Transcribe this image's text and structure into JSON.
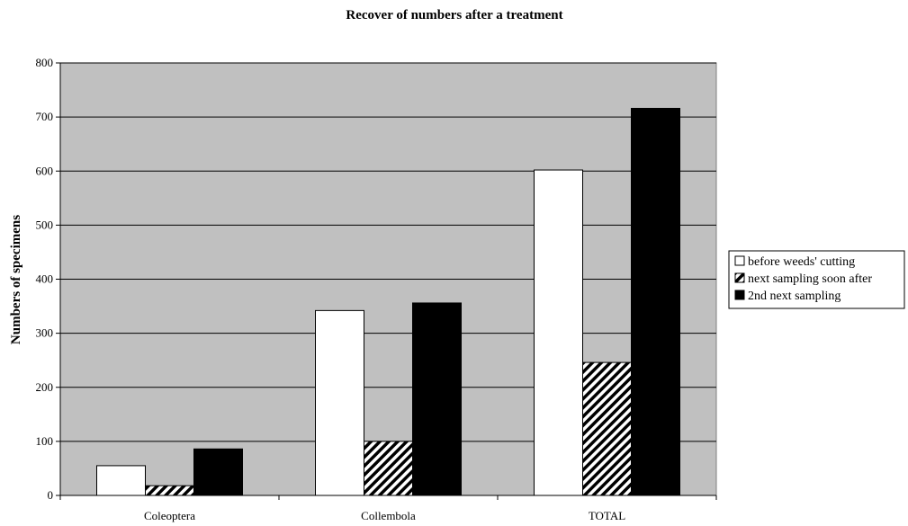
{
  "chart_data": {
    "type": "bar",
    "title": "Recover of numbers after a treatment",
    "xlabel": "",
    "ylabel": "Numbers of specimens",
    "ylim": [
      0,
      800
    ],
    "ytick_step": 100,
    "categories": [
      "Coleoptera",
      "Collembola",
      "TOTAL"
    ],
    "series": [
      {
        "name": "before weeds' cutting",
        "values": [
          55,
          342,
          602
        ],
        "fill": "white"
      },
      {
        "name": "next sampling soon after",
        "values": [
          18,
          100,
          246
        ],
        "fill": "hatch"
      },
      {
        "name": "2nd next sampling",
        "values": [
          86,
          356,
          716
        ],
        "fill": "black"
      }
    ],
    "plot_background": "#c0c0c0",
    "grid": true,
    "legend_position": "right"
  }
}
